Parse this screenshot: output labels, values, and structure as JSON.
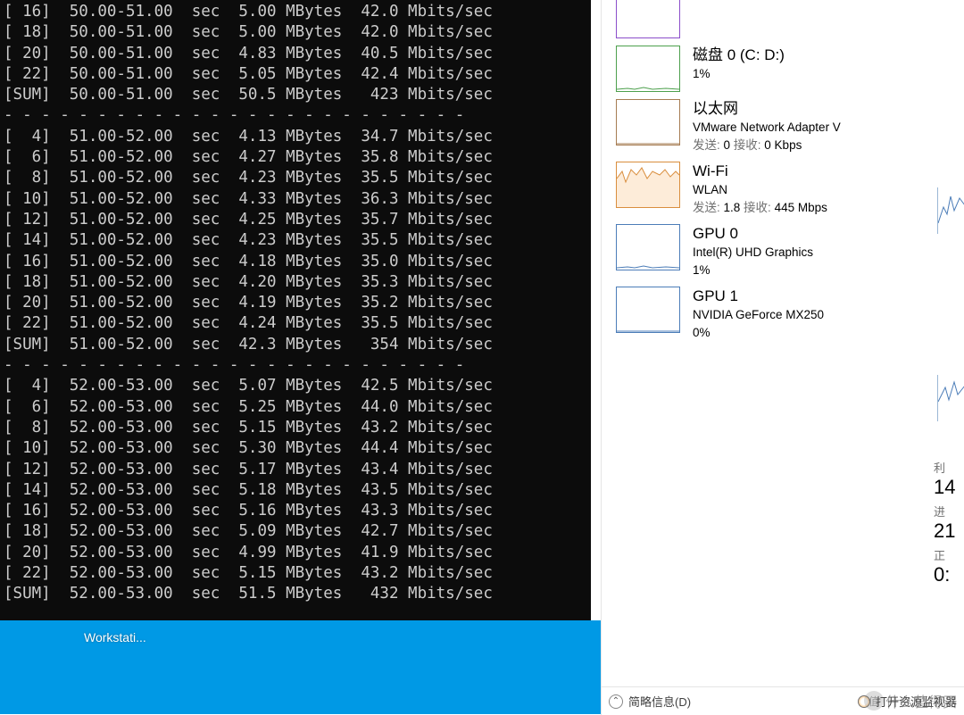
{
  "terminal": {
    "bg": "#0c0c0c",
    "fg": "#cccccc",
    "blocks": [
      {
        "rows": [
          {
            "id": "16",
            "int": "50.00-51.00",
            "tx": "5.00",
            "bw": "42.0"
          },
          {
            "id": "18",
            "int": "50.00-51.00",
            "tx": "5.00",
            "bw": "42.0"
          },
          {
            "id": "20",
            "int": "50.00-51.00",
            "tx": "4.83",
            "bw": "40.5"
          },
          {
            "id": "22",
            "int": "50.00-51.00",
            "tx": "5.05",
            "bw": "42.4"
          }
        ],
        "sum": {
          "id": "SUM",
          "int": "50.00-51.00",
          "tx": "50.5",
          "bw": " 423"
        }
      },
      {
        "rows": [
          {
            "id": " 4",
            "int": "51.00-52.00",
            "tx": "4.13",
            "bw": "34.7"
          },
          {
            "id": " 6",
            "int": "51.00-52.00",
            "tx": "4.27",
            "bw": "35.8"
          },
          {
            "id": " 8",
            "int": "51.00-52.00",
            "tx": "4.23",
            "bw": "35.5"
          },
          {
            "id": "10",
            "int": "51.00-52.00",
            "tx": "4.33",
            "bw": "36.3"
          },
          {
            "id": "12",
            "int": "51.00-52.00",
            "tx": "4.25",
            "bw": "35.7"
          },
          {
            "id": "14",
            "int": "51.00-52.00",
            "tx": "4.23",
            "bw": "35.5"
          },
          {
            "id": "16",
            "int": "51.00-52.00",
            "tx": "4.18",
            "bw": "35.0"
          },
          {
            "id": "18",
            "int": "51.00-52.00",
            "tx": "4.20",
            "bw": "35.3"
          },
          {
            "id": "20",
            "int": "51.00-52.00",
            "tx": "4.19",
            "bw": "35.2"
          },
          {
            "id": "22",
            "int": "51.00-52.00",
            "tx": "4.24",
            "bw": "35.5"
          }
        ],
        "sum": {
          "id": "SUM",
          "int": "51.00-52.00",
          "tx": "42.3",
          "bw": " 354"
        }
      },
      {
        "rows": [
          {
            "id": " 4",
            "int": "52.00-53.00",
            "tx": "5.07",
            "bw": "42.5"
          },
          {
            "id": " 6",
            "int": "52.00-53.00",
            "tx": "5.25",
            "bw": "44.0"
          },
          {
            "id": " 8",
            "int": "52.00-53.00",
            "tx": "5.15",
            "bw": "43.2"
          },
          {
            "id": "10",
            "int": "52.00-53.00",
            "tx": "5.30",
            "bw": "44.4"
          },
          {
            "id": "12",
            "int": "52.00-53.00",
            "tx": "5.17",
            "bw": "43.4"
          },
          {
            "id": "14",
            "int": "52.00-53.00",
            "tx": "5.18",
            "bw": "43.5"
          },
          {
            "id": "16",
            "int": "52.00-53.00",
            "tx": "5.16",
            "bw": "43.3"
          },
          {
            "id": "18",
            "int": "52.00-53.00",
            "tx": "5.09",
            "bw": "42.7"
          },
          {
            "id": "20",
            "int": "52.00-53.00",
            "tx": "4.99",
            "bw": "41.9"
          },
          {
            "id": "22",
            "int": "52.00-53.00",
            "tx": "5.15",
            "bw": "43.2"
          }
        ],
        "sum": {
          "id": "SUM",
          "int": "52.00-53.00",
          "tx": "51.5",
          "bw": " 432"
        }
      }
    ],
    "sec_label": "sec",
    "mb_label": "MBytes",
    "bw_label": "Mbits/sec",
    "divider": "- - - - - - - - - - - - - - - - - - - - - - - - -"
  },
  "taskbar": {
    "item1": "Workstati..."
  },
  "perf": {
    "items": [
      {
        "key": "mem",
        "partial": true,
        "title": "",
        "sub": "",
        "border": "#8b4eca",
        "detail": ""
      },
      {
        "key": "disk0",
        "title": "磁盘 0 (C: D:)",
        "sub": "1%",
        "border": "#4da04d",
        "graph_line": "flat-low"
      },
      {
        "key": "eth",
        "title": "以太网",
        "sub": "VMware Network Adapter V",
        "detail_send_label": "发送:",
        "detail_send": "0",
        "detail_recv_label": "接收:",
        "detail_recv": "0 Kbps",
        "border": "#a67c52",
        "graph_line": "flat-zero"
      },
      {
        "key": "wifi",
        "title": "Wi-Fi",
        "sub": "WLAN",
        "detail_send_label": "发送:",
        "detail_send": "1.8",
        "detail_recv_label": "接收:",
        "detail_recv": "445 Mbps",
        "border": "#d98e3e",
        "graph_line": "wifi-active",
        "fill": "#fdecd9"
      },
      {
        "key": "gpu0",
        "title": "GPU 0",
        "sub": "Intel(R) UHD Graphics",
        "detail": "1%",
        "border": "#4c7db8",
        "graph_line": "flat-low"
      },
      {
        "key": "gpu1",
        "title": "GPU 1",
        "sub": "NVIDIA GeForce MX250",
        "detail": "0%",
        "border": "#4c7db8",
        "graph_line": "flat-zero"
      }
    ]
  },
  "stats": {
    "r1_label": "利",
    "r1_val": "14",
    "r2_label": "进",
    "r2_val": "21",
    "r3_label": "正",
    "r3_val": "0:"
  },
  "bottombar": {
    "compact": "简略信息(D)",
    "open": "打开资源监视器"
  },
  "watermark": "什么值得买",
  "colors": {
    "desktop": "#0099e5",
    "taskmgr_bg": "#ffffff"
  }
}
